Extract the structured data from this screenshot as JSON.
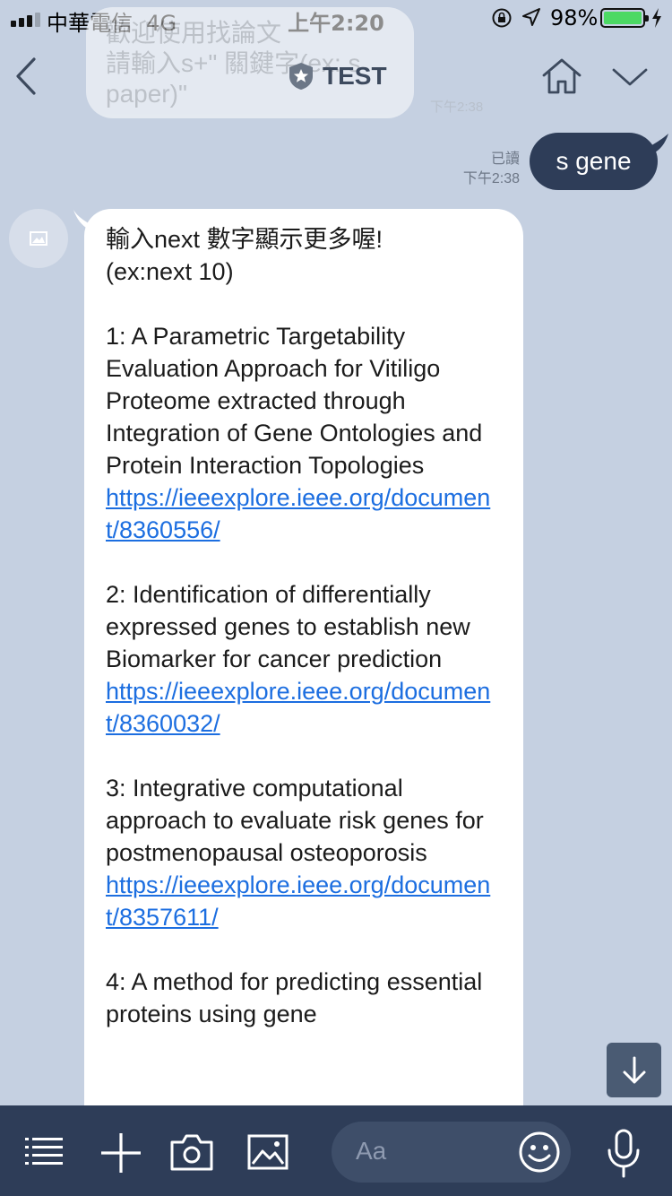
{
  "status_bar": {
    "carrier": "中華電信",
    "network": "4G",
    "time": "上午2:20",
    "battery": "98%"
  },
  "header": {
    "title": "TEST",
    "background_message_lines": [
      "歡迎使用找論文",
      "請輸入s+\" 關鍵字(ex: s",
      "paper)\""
    ],
    "background_message_time": "下午2:38"
  },
  "sent_message": {
    "text": "s gene",
    "read_label": "已讀",
    "time": "下午2:38"
  },
  "received_message": {
    "intro_line1": "輸入next 數字顯示更多喔!",
    "intro_line2": "(ex:next 10)",
    "entries": [
      {
        "title": "1: A Parametric Targetability Evaluation Approach for Vitiligo Proteome extracted through Integration of Gene Ontologies and Protein Interaction Topologies",
        "link": "https://ieeexplore.ieee.org/document/8360556/"
      },
      {
        "title": "2: Identification of differentially expressed genes to establish new Biomarker for cancer prediction",
        "link": "https://ieeexplore.ieee.org/document/8360032/"
      },
      {
        "title": "3: Integrative computational approach to evaluate risk genes for postmenopausal osteoporosis",
        "link": "https://ieeexplore.ieee.org/document/8357611/"
      },
      {
        "title": "4: A method for predicting essential proteins using gene",
        "link": ""
      }
    ]
  },
  "input": {
    "placeholder": "Aa"
  },
  "colors": {
    "chat_background": "#c5d0e1",
    "toolbar": "#2e3d58",
    "sent_bubble": "#2e3d58",
    "link": "#1c6ee0",
    "battery": "#4cd964"
  }
}
